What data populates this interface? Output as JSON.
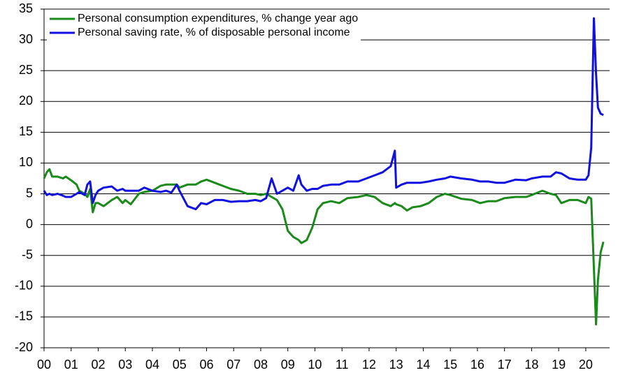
{
  "chart_data": {
    "type": "line",
    "x": [
      2000.0,
      2000.1,
      2000.2,
      2000.3,
      2000.5,
      2000.7,
      2000.8,
      2001.0,
      2001.2,
      2001.3,
      2001.5,
      2001.6,
      2001.7,
      2001.8,
      2001.9,
      2002.0,
      2002.2,
      2002.5,
      2002.7,
      2002.9,
      2003.0,
      2003.2,
      2003.5,
      2003.7,
      2004.0,
      2004.3,
      2004.5,
      2004.7,
      2004.9,
      2005.0,
      2005.3,
      2005.6,
      2005.8,
      2006.0,
      2006.3,
      2006.6,
      2006.9,
      2007.2,
      2007.5,
      2007.8,
      2008.0,
      2008.2,
      2008.4,
      2008.6,
      2008.8,
      2009.0,
      2009.2,
      2009.4,
      2009.5,
      2009.7,
      2009.9,
      2010.1,
      2010.3,
      2010.6,
      2010.9,
      2011.2,
      2011.6,
      2011.9,
      2012.2,
      2012.5,
      2012.8,
      2012.95,
      2013.0,
      2013.2,
      2013.4,
      2013.6,
      2013.9,
      2014.2,
      2014.5,
      2014.8,
      2015.0,
      2015.4,
      2015.8,
      2016.1,
      2016.4,
      2016.7,
      2017.0,
      2017.4,
      2017.8,
      2018.0,
      2018.4,
      2018.7,
      2018.9,
      2019.1,
      2019.4,
      2019.7,
      2020.0,
      2020.1,
      2020.2,
      2020.3,
      2020.38,
      2020.45,
      2020.55,
      2020.65
    ],
    "series": [
      {
        "name": "Personal consumption expenditures, % change year ago",
        "color": "#1a8a1a",
        "values": [
          7.5,
          8.5,
          9.0,
          7.8,
          7.8,
          7.5,
          7.8,
          7.2,
          6.5,
          5.5,
          5.0,
          4.5,
          5.8,
          2.0,
          3.5,
          3.5,
          3.0,
          4.0,
          4.5,
          3.5,
          4.0,
          3.3,
          5.0,
          5.3,
          5.5,
          6.3,
          6.5,
          6.5,
          6.5,
          6.0,
          6.5,
          6.5,
          7.0,
          7.3,
          6.8,
          6.3,
          5.8,
          5.5,
          5.0,
          5.0,
          4.8,
          5.0,
          4.5,
          4.0,
          2.5,
          -1.0,
          -2.0,
          -2.5,
          -3.0,
          -2.5,
          -0.5,
          2.5,
          3.5,
          3.8,
          3.5,
          4.3,
          4.5,
          4.8,
          4.5,
          3.5,
          3.0,
          3.5,
          3.3,
          3.0,
          2.3,
          2.8,
          3.0,
          3.5,
          4.5,
          5.0,
          4.8,
          4.2,
          4.0,
          3.5,
          3.8,
          3.8,
          4.3,
          4.5,
          4.5,
          4.8,
          5.5,
          5.0,
          4.8,
          3.5,
          4.0,
          4.0,
          3.5,
          4.5,
          4.2,
          -7.0,
          -16.2,
          -9.0,
          -4.5,
          -2.8
        ]
      },
      {
        "name": "Personal saving rate, % of disposable personal income",
        "color": "#1010e0",
        "values": [
          5.5,
          4.8,
          5.0,
          4.8,
          5.0,
          4.7,
          4.5,
          4.5,
          5.0,
          5.3,
          4.8,
          6.5,
          7.0,
          3.5,
          4.8,
          5.5,
          6.0,
          6.2,
          5.5,
          5.8,
          5.5,
          5.5,
          5.5,
          6.0,
          5.5,
          5.3,
          5.5,
          5.2,
          6.5,
          5.5,
          3.0,
          2.5,
          3.5,
          3.3,
          4.0,
          4.0,
          3.7,
          3.8,
          3.8,
          4.0,
          3.8,
          4.3,
          7.5,
          5.0,
          5.5,
          6.0,
          5.5,
          8.0,
          6.5,
          5.5,
          5.8,
          5.8,
          6.3,
          6.5,
          6.5,
          7.0,
          7.0,
          7.5,
          8.0,
          8.5,
          9.5,
          12.0,
          6.0,
          6.5,
          6.8,
          6.8,
          6.8,
          7.0,
          7.3,
          7.5,
          7.8,
          7.5,
          7.3,
          7.0,
          7.0,
          6.8,
          6.8,
          7.3,
          7.2,
          7.5,
          7.8,
          7.8,
          8.5,
          8.3,
          7.5,
          7.3,
          7.3,
          8.0,
          12.5,
          33.5,
          24.5,
          19.0,
          18.0,
          17.8
        ]
      }
    ],
    "xlim": [
      2000,
      2020.88
    ],
    "xticks": [
      {
        "value": 2000,
        "label": "00"
      },
      {
        "value": 2001,
        "label": "01"
      },
      {
        "value": 2002,
        "label": "02"
      },
      {
        "value": 2003,
        "label": "03"
      },
      {
        "value": 2004,
        "label": "04"
      },
      {
        "value": 2005,
        "label": "05"
      },
      {
        "value": 2006,
        "label": "06"
      },
      {
        "value": 2007,
        "label": "07"
      },
      {
        "value": 2008,
        "label": "08"
      },
      {
        "value": 2009,
        "label": "09"
      },
      {
        "value": 2010,
        "label": "10"
      },
      {
        "value": 2011,
        "label": "11"
      },
      {
        "value": 2012,
        "label": "12"
      },
      {
        "value": 2013,
        "label": "13"
      },
      {
        "value": 2014,
        "label": "14"
      },
      {
        "value": 2015,
        "label": "15"
      },
      {
        "value": 2016,
        "label": "16"
      },
      {
        "value": 2017,
        "label": "17"
      },
      {
        "value": 2018,
        "label": "18"
      },
      {
        "value": 2019,
        "label": "19"
      },
      {
        "value": 2020,
        "label": "20"
      }
    ],
    "ylim": [
      -20,
      35
    ],
    "yticks": [
      -20,
      -15,
      -10,
      -5,
      0,
      5,
      10,
      15,
      20,
      25,
      30,
      35
    ],
    "grid": true,
    "legend": "top-left"
  }
}
